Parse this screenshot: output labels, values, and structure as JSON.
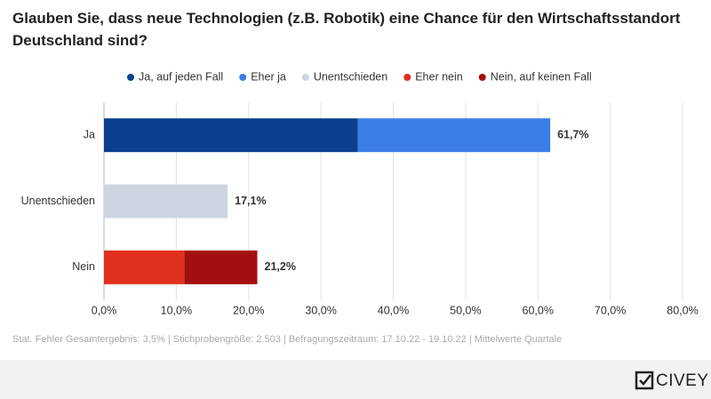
{
  "chart_data": {
    "type": "stacked_bar_horizontal",
    "title": "Glauben Sie, dass neue Technologien (z.B. Robotik) eine Chance für den Wirtschaftsstandort Deutschland sind?",
    "categories": [
      "Ja",
      "Unentschieden",
      "Nein"
    ],
    "series": [
      {
        "name": "Ja, auf jeden Fall",
        "color": "#0c3f8e",
        "values": [
          35.1,
          null,
          null
        ]
      },
      {
        "name": "Eher ja",
        "color": "#3c7ee8",
        "values": [
          26.6,
          null,
          null
        ]
      },
      {
        "name": "Unentschieden",
        "color": "#cdd6e0",
        "values": [
          null,
          17.1,
          null
        ]
      },
      {
        "name": "Eher nein",
        "color": "#e0301e",
        "values": [
          null,
          null,
          11.1
        ]
      },
      {
        "name": "Nein, auf keinen Fall",
        "color": "#a30f10",
        "values": [
          null,
          null,
          10.1
        ]
      }
    ],
    "totals": [
      61.7,
      17.1,
      21.2
    ],
    "total_labels": [
      "61,7%",
      "17,1%",
      "21,2%"
    ],
    "xlim": [
      0,
      80
    ],
    "xticks": [
      {
        "value": 0,
        "label": "0,0%"
      },
      {
        "value": 10,
        "label": "10,0%"
      },
      {
        "value": 20,
        "label": "20,0%"
      },
      {
        "value": 30,
        "label": "30,0%"
      },
      {
        "value": 40,
        "label": "40,0%"
      },
      {
        "value": 50,
        "label": "50,0%"
      },
      {
        "value": 60,
        "label": "60,0%"
      },
      {
        "value": 70,
        "label": "70,0%"
      },
      {
        "value": 80,
        "label": "80,0%"
      }
    ],
    "grid": true,
    "legend": "top",
    "footnote": "Stat. Fehler Gesamtergebnis: 3,5% | Stichprobengröße: 2.503 | Befragungszeitraum: 17.10.22 - 19.10.22 | Mittelwerte Quartale",
    "brand": "CIVEY"
  }
}
